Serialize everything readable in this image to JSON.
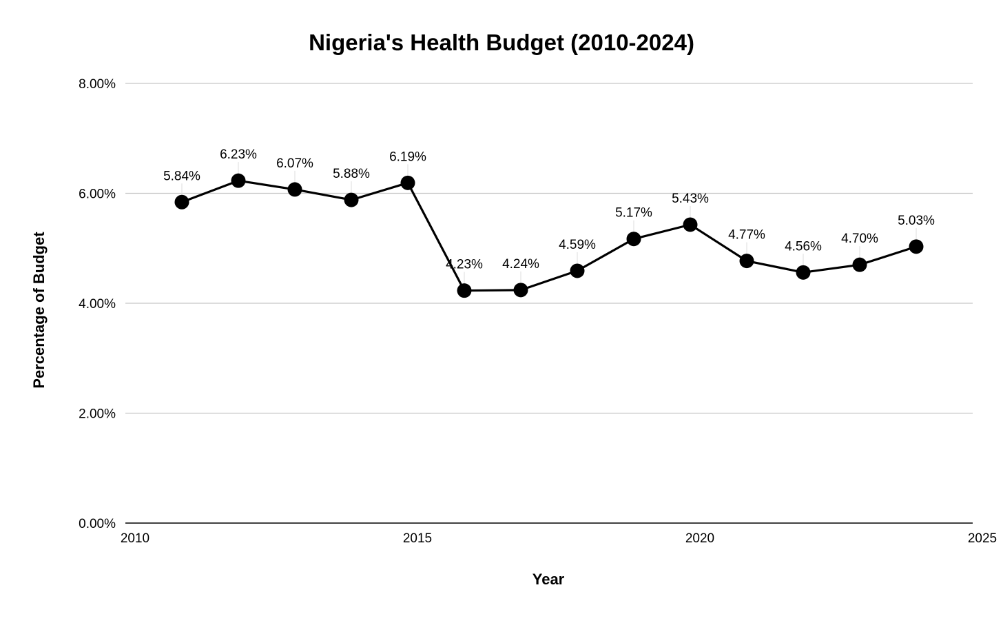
{
  "chart_data": {
    "type": "line",
    "title": "Nigeria's Health Budget (2010-2024)",
    "xlabel": "Year",
    "ylabel": "Percentage of Budget",
    "xlim": [
      2010,
      2025
    ],
    "ylim": [
      0,
      8
    ],
    "x_ticks": [
      {
        "value": 2010,
        "label": "2010"
      },
      {
        "value": 2015,
        "label": "2015"
      },
      {
        "value": 2020,
        "label": "2020"
      },
      {
        "value": 2025,
        "label": "2025"
      }
    ],
    "y_ticks": [
      {
        "value": 0,
        "label": "0.00%"
      },
      {
        "value": 2,
        "label": "2.00%"
      },
      {
        "value": 4,
        "label": "4.00%"
      },
      {
        "value": 6,
        "label": "6.00%"
      },
      {
        "value": 8,
        "label": "8.00%"
      }
    ],
    "grid": true,
    "legend": "none",
    "series": [
      {
        "color": "#000000",
        "points": [
          {
            "x": 2011,
            "y": 5.84,
            "label": "5.84%"
          },
          {
            "x": 2012,
            "y": 6.23,
            "label": "6.23%"
          },
          {
            "x": 2013,
            "y": 6.07,
            "label": "6.07%"
          },
          {
            "x": 2014,
            "y": 5.88,
            "label": "5.88%"
          },
          {
            "x": 2015,
            "y": 6.19,
            "label": "6.19%"
          },
          {
            "x": 2016,
            "y": 4.23,
            "label": "4.23%"
          },
          {
            "x": 2017,
            "y": 4.24,
            "label": "4.24%"
          },
          {
            "x": 2018,
            "y": 4.59,
            "label": "4.59%"
          },
          {
            "x": 2019,
            "y": 5.17,
            "label": "5.17%"
          },
          {
            "x": 2020,
            "y": 5.43,
            "label": "5.43%"
          },
          {
            "x": 2021,
            "y": 4.77,
            "label": "4.77%"
          },
          {
            "x": 2022,
            "y": 4.56,
            "label": "4.56%"
          },
          {
            "x": 2023,
            "y": 4.7,
            "label": "4.70%"
          },
          {
            "x": 2024,
            "y": 5.03,
            "label": "5.03%"
          }
        ]
      }
    ]
  }
}
